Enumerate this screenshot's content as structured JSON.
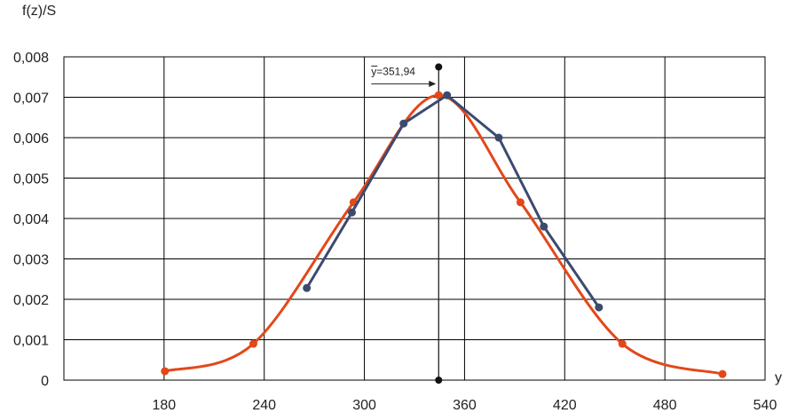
{
  "chart_data": {
    "type": "line",
    "ylabel": "f(z)/S",
    "xlabel": "y",
    "xlim": [
      120,
      540
    ],
    "ylim": [
      0,
      0.008
    ],
    "x_ticks": [
      {
        "value": 180,
        "label": "180"
      },
      {
        "value": 240,
        "label": "240"
      },
      {
        "value": 300,
        "label": "300"
      },
      {
        "value": 360,
        "label": "360"
      },
      {
        "value": 420,
        "label": "420"
      },
      {
        "value": 480,
        "label": "480"
      },
      {
        "value": 540,
        "label": "540"
      }
    ],
    "y_ticks": [
      {
        "value": 0,
        "label": "0"
      },
      {
        "value": 0.001,
        "label": "0,001"
      },
      {
        "value": 0.002,
        "label": "0,002"
      },
      {
        "value": 0.003,
        "label": "0,003"
      },
      {
        "value": 0.004,
        "label": "0,004"
      },
      {
        "value": 0.005,
        "label": "0,005"
      },
      {
        "value": 0.006,
        "label": "0,006"
      },
      {
        "value": 0.007,
        "label": "0,007"
      },
      {
        "value": 0.008,
        "label": "0,008"
      }
    ],
    "grid": true,
    "series": [
      {
        "color": "#e2481a",
        "smooth": true,
        "points": [
          {
            "x": 180.5,
            "y": 0.00022
          },
          {
            "x": 233.5,
            "y": 0.0009
          },
          {
            "x": 293.5,
            "y": 0.0044
          },
          {
            "x": 344.5,
            "y": 0.00705
          },
          {
            "x": 393.5,
            "y": 0.0044
          },
          {
            "x": 454.5,
            "y": 0.0009
          },
          {
            "x": 514.5,
            "y": 0.00015
          }
        ]
      },
      {
        "color": "#3d4a6e",
        "smooth": false,
        "points": [
          {
            "x": 265.5,
            "y": 0.00228
          },
          {
            "x": 292.5,
            "y": 0.00415
          },
          {
            "x": 323.5,
            "y": 0.00635
          },
          {
            "x": 349.5,
            "y": 0.00705
          },
          {
            "x": 380.5,
            "y": 0.006
          },
          {
            "x": 407.5,
            "y": 0.0038
          },
          {
            "x": 440.5,
            "y": 0.0018
          }
        ]
      }
    ],
    "mean_line": {
      "x": 344.5,
      "y_top": 0.00775,
      "label": "y=351,94"
    }
  }
}
